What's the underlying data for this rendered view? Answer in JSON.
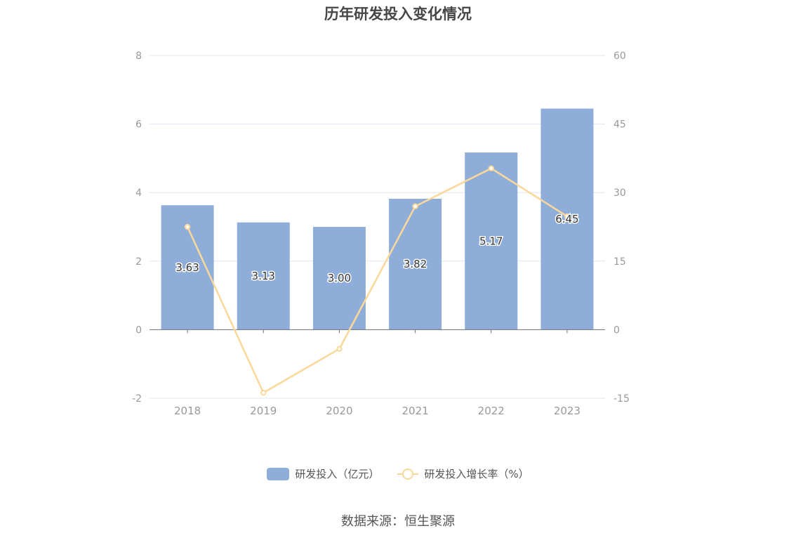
{
  "chart_data": {
    "type": "bar",
    "title": "历年研发投入变化情况",
    "categories": [
      "2018",
      "2019",
      "2020",
      "2021",
      "2022",
      "2023"
    ],
    "series": [
      {
        "name": "研发投入（亿元）",
        "type": "bar",
        "axis": "left",
        "values": [
          3.63,
          3.13,
          3.0,
          3.82,
          5.17,
          6.45
        ],
        "labels": [
          "3.63",
          "3.13",
          "3.00",
          "3.82",
          "5.17",
          "6.45"
        ]
      },
      {
        "name": "研发投入增长率（%）",
        "type": "line",
        "axis": "right",
        "values": [
          22.5,
          -13.8,
          -4.2,
          27.0,
          35.3,
          24.8
        ]
      }
    ],
    "y_left": {
      "min": -2,
      "max": 8,
      "ticks": [
        -2,
        0,
        2,
        4,
        6,
        8
      ]
    },
    "y_right": {
      "min": -15,
      "max": 60,
      "ticks": [
        -15,
        0,
        15,
        30,
        45,
        60
      ]
    },
    "grid": true,
    "legend_position": "bottom-center",
    "colors": {
      "bar": "#8eaed9",
      "line": "#fbd899",
      "grid": "#e0e6f1",
      "axis_text": "#999999"
    }
  },
  "footer": {
    "source": "数据来源：恒生聚源"
  }
}
